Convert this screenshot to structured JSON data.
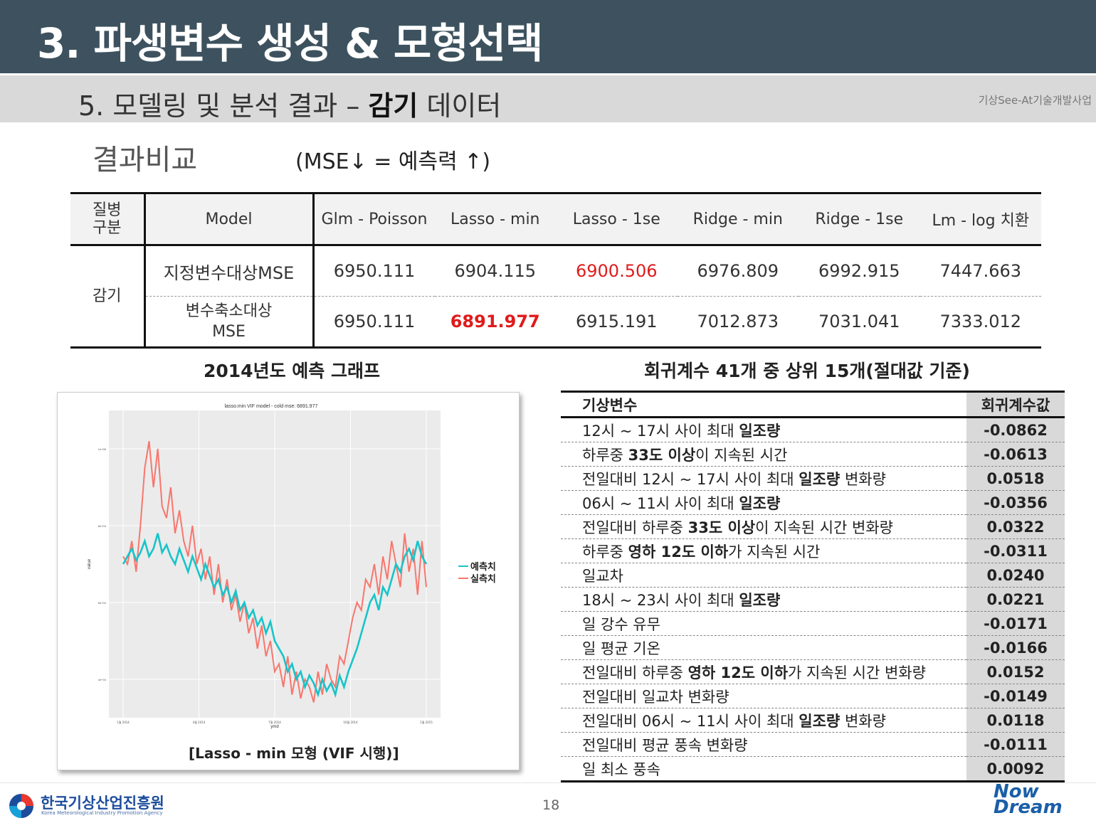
{
  "header": {
    "title": "3. 파생변수 생성 & 모형선택"
  },
  "subheader": {
    "title_plain": "5. 모델링 및 분석 결과 – ",
    "title_bold": "감기",
    "title_tail": " 데이터",
    "org": "기상See-At기술개발사업"
  },
  "section": {
    "title": "결과비교",
    "note": "(MSE↓ = 예측력 ↑)"
  },
  "comparison_table": {
    "header": {
      "disease": "질병\n구분",
      "model": "Model",
      "columns": [
        "Glm - Poisson",
        "Lasso - min",
        "Lasso - 1se",
        "Ridge - min",
        "Ridge - 1se",
        "Lm - log 치환"
      ]
    },
    "disease": "감기",
    "rows": [
      {
        "label": "지정변수대상MSE",
        "values": [
          "6950.111",
          "6904.115",
          "6900.506",
          "6976.809",
          "6992.915",
          "7447.663"
        ]
      },
      {
        "label": "변수축소대상\nMSE",
        "values": [
          "6950.111",
          "6891.977",
          "6915.191",
          "7012.873",
          "7031.041",
          "7333.012"
        ]
      }
    ]
  },
  "graph": {
    "title": "2014년도 예측 그래프",
    "caption": "[Lasso  -  min 모형 (VIF 시행)]"
  },
  "chart_data": {
    "type": "line",
    "title": "lasso.min VIF model - cold    mse: 6891.977",
    "xlabel": "ymd",
    "ylabel": "value",
    "yticks": [
      "1e+05",
      "8e+04",
      "6e+04",
      "4e+04"
    ],
    "xticks": [
      "1월 2014",
      "4월 2014",
      "7월 2014",
      "10월 2014",
      "1월 2015"
    ],
    "ylim": [
      30000,
      110000
    ],
    "grid": true,
    "legend_position": "right",
    "series": [
      {
        "name": "예측치",
        "color": "#17c4c9",
        "values": [
          70000,
          72000,
          74000,
          71000,
          73000,
          76000,
          72000,
          74000,
          78000,
          73000,
          75000,
          72000,
          70000,
          74000,
          71000,
          68000,
          72000,
          69000,
          66000,
          70000,
          67000,
          64000,
          66000,
          62000,
          64000,
          60000,
          63000,
          58000,
          60000,
          56000,
          58000,
          54000,
          56000,
          52000,
          55000,
          50000,
          48000,
          46000,
          42000,
          44000,
          40000,
          42000,
          38000,
          41000,
          39000,
          36000,
          40000,
          37000,
          39000,
          36000,
          41000,
          38000,
          42000,
          45000,
          48000,
          52000,
          56000,
          60000,
          62000,
          58000,
          64000,
          62000,
          66000,
          70000,
          68000,
          72000,
          74000,
          71000,
          76000,
          72000,
          70000
        ]
      },
      {
        "name": "실측치",
        "color": "#f8766d",
        "values": [
          72000,
          70000,
          76000,
          68000,
          80000,
          95000,
          102000,
          90000,
          100000,
          85000,
          82000,
          90000,
          78000,
          84000,
          76000,
          72000,
          80000,
          70000,
          74000,
          66000,
          72000,
          62000,
          70000,
          60000,
          66000,
          58000,
          62000,
          55000,
          60000,
          52000,
          56000,
          48000,
          54000,
          46000,
          50000,
          42000,
          44000,
          38000,
          46000,
          36000,
          42000,
          35000,
          40000,
          38000,
          34000,
          42000,
          36000,
          44000,
          40000,
          38000,
          46000,
          44000,
          50000,
          56000,
          60000,
          58000,
          66000,
          64000,
          70000,
          62000,
          72000,
          66000,
          76000,
          70000,
          64000,
          78000,
          68000,
          74000,
          62000,
          76000,
          64000
        ]
      }
    ]
  },
  "coef": {
    "title": "회귀계수 41개 중 상위 15개(절대값 기준)",
    "header": {
      "name": "기상변수",
      "value": "회귀계수값"
    },
    "rows": [
      {
        "name": "12시 ~ 17시 사이 최대 일조량",
        "value": "-0.0862"
      },
      {
        "name": "하루중 33도 이상이 지속된 시간",
        "value": "-0.0613"
      },
      {
        "name": "전일대비 12시 ~ 17시 사이 최대 일조량 변화량",
        "value": "0.0518"
      },
      {
        "name": "06시 ~ 11시 사이 최대 일조량",
        "value": "-0.0356"
      },
      {
        "name": "전일대비 하루중 33도 이상이 지속된 시간 변화량",
        "value": "0.0322"
      },
      {
        "name": "하루중 영하 12도 이하가 지속된 시간",
        "value": "-0.0311"
      },
      {
        "name": "일교차",
        "value": "0.0240"
      },
      {
        "name": "18시 ~ 23시 사이 최대 일조량",
        "value": "0.0221"
      },
      {
        "name": "일 강수 유무",
        "value": "-0.0171"
      },
      {
        "name": "일 평균 기온",
        "value": "-0.0166"
      },
      {
        "name": "전일대비 하루중 영하 12도 이하가 지속된 시간 변화량",
        "value": "0.0152"
      },
      {
        "name": "전일대비 일교차 변화량",
        "value": "-0.0149"
      },
      {
        "name": "전일대비 06시 ~ 11시 사이 최대 일조량 변화량",
        "value": "0.0118"
      },
      {
        "name": "전일대비 평균 풍속 변화량",
        "value": "-0.0111"
      },
      {
        "name": "일 최소 풍속",
        "value": "0.0092"
      }
    ]
  },
  "footer": {
    "logo_name": "한국기상산업진흥원",
    "logo_eng": "Korea Meteorological Industry Promotion Agency",
    "page": "18",
    "brand_line1": "Now",
    "brand_line2": "Dream"
  },
  "colors": {
    "header_bg": "#3d525e",
    "subheader_bg": "#d9d9d9",
    "highlight_red": "#e01b1b",
    "predict": "#17c4c9",
    "actual": "#f8766d"
  }
}
